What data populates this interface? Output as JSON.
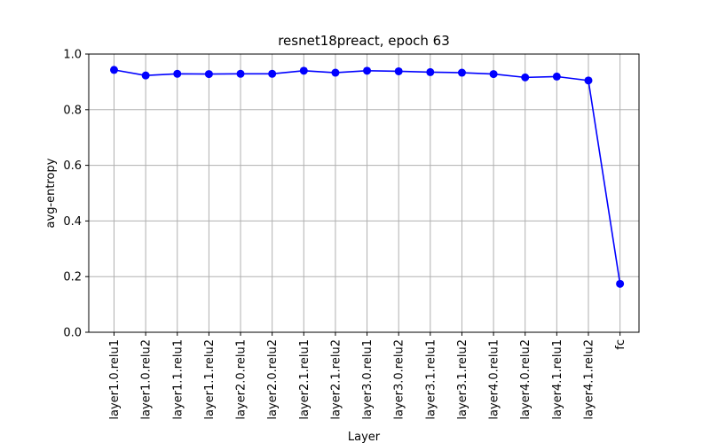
{
  "chart_data": {
    "type": "line",
    "title": "resnet18preact, epoch 63",
    "xlabel": "Layer",
    "ylabel": "avg-entropy",
    "ylim": [
      0.0,
      1.0
    ],
    "yticks": [
      "0.0",
      "0.2",
      "0.4",
      "0.6",
      "0.8",
      "1.0"
    ],
    "grid": true,
    "legend": "none",
    "categories": [
      "layer1.0.relu1",
      "layer1.0.relu2",
      "layer1.1.relu1",
      "layer1.1.relu2",
      "layer2.0.relu1",
      "layer2.0.relu2",
      "layer2.1.relu1",
      "layer2.1.relu2",
      "layer3.0.relu1",
      "layer3.0.relu2",
      "layer3.1.relu1",
      "layer3.1.relu2",
      "layer4.0.relu1",
      "layer4.0.relu2",
      "layer4.1.relu1",
      "layer4.1.relu2",
      "fc"
    ],
    "series": [
      {
        "color": "#0000ff",
        "marker": "circle",
        "values": [
          0.943,
          0.923,
          0.929,
          0.928,
          0.929,
          0.929,
          0.94,
          0.933,
          0.94,
          0.938,
          0.935,
          0.933,
          0.928,
          0.916,
          0.919,
          0.905,
          0.174
        ]
      }
    ],
    "colors": {
      "grid": "#b0b0b0",
      "axes": "#000000"
    }
  }
}
